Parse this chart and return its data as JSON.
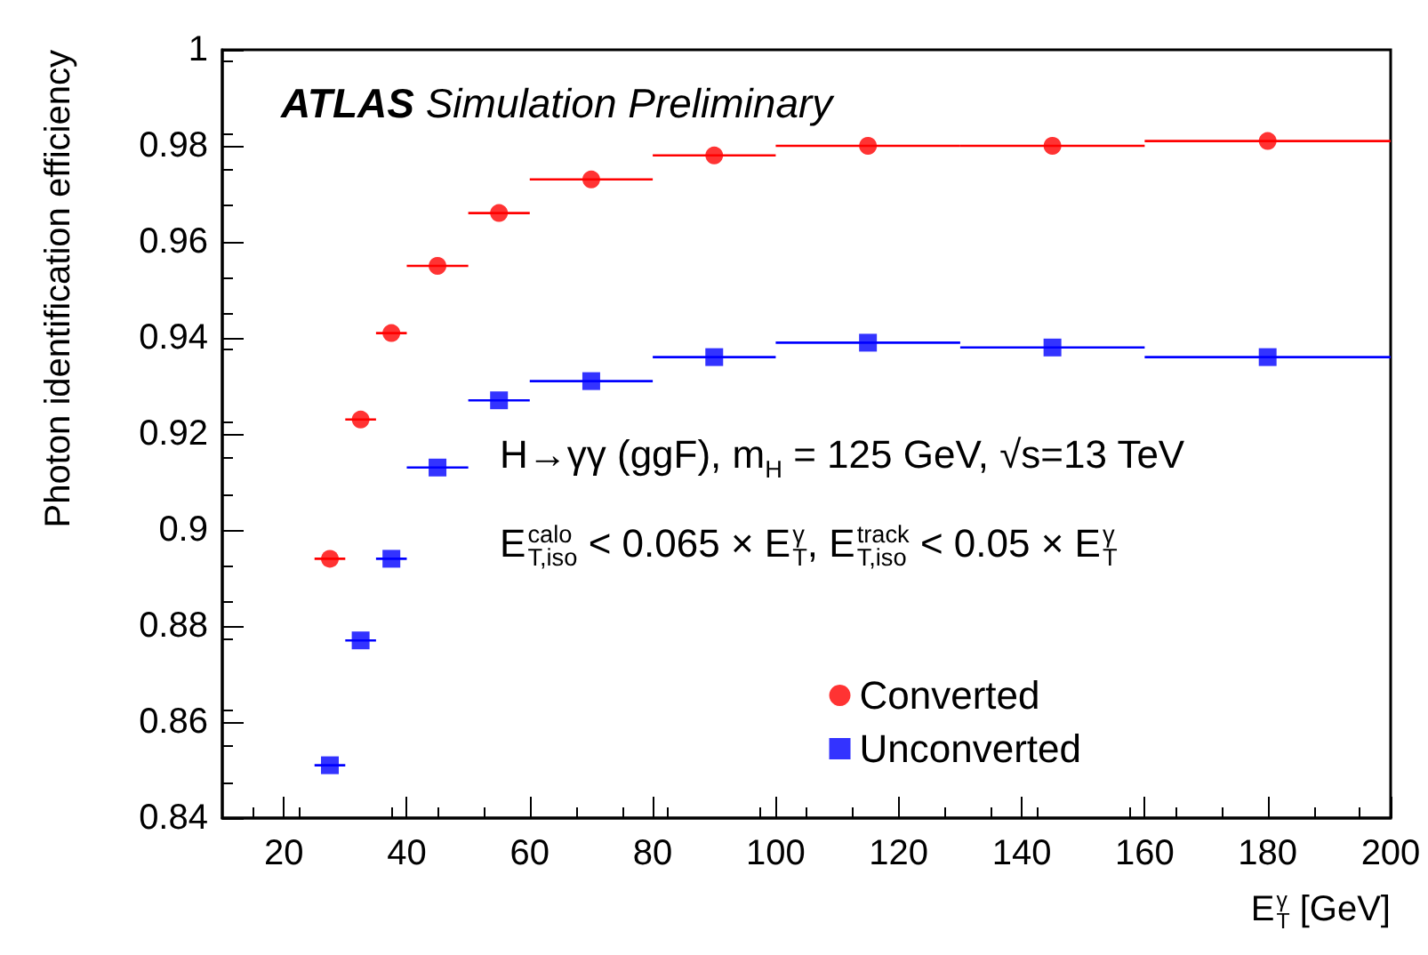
{
  "chart_data": {
    "type": "scatter",
    "xlabel": "E$^{γ}$$_{T}$ [GeV]",
    "ylabel": "Photon identification efficiency",
    "annotations": [
      "ATLAS Simulation Preliminary",
      "H→γγ (ggF), m$_{H}$ = 125 GeV, √s=13 TeV",
      "E$^{calo}$$_{T,iso}$ < 0.065 × E$^{γ}$$_{T}$,  E$^{track}$$_{T,iso}$ < 0.05 × E$^{γ}$$_{T}$"
    ],
    "x": [
      27.5,
      32.5,
      37.5,
      45,
      55,
      70,
      90,
      115,
      145,
      180
    ],
    "series": [
      {
        "name": "Converted",
        "color": "#ff0000",
        "marker": "circle",
        "values": [
          0.894,
          0.923,
          0.941,
          0.955,
          0.966,
          0.973,
          0.978,
          0.98,
          0.98,
          0.981
        ],
        "xerrors": [
          2.5,
          2.5,
          2.5,
          5,
          5,
          10,
          10,
          15,
          15,
          20
        ]
      },
      {
        "name": "Unconverted",
        "color": "#0000ff",
        "marker": "square",
        "values": [
          0.851,
          0.877,
          0.894,
          0.913,
          0.927,
          0.931,
          0.936,
          0.939,
          0.938,
          0.936
        ],
        "xerrors": [
          2.5,
          2.5,
          2.5,
          5,
          5,
          10,
          10,
          15,
          15,
          20
        ]
      }
    ],
    "xlim": [
      10,
      200
    ],
    "xticks": [
      20,
      40,
      60,
      80,
      100,
      120,
      140,
      160,
      180,
      200
    ],
    "ylim": [
      0.84,
      1
    ],
    "yticks": [
      0.84,
      0.86,
      0.88,
      0.9,
      0.92,
      0.94,
      0.96,
      0.98,
      1
    ],
    "grid": false,
    "legend": "bottom right"
  }
}
